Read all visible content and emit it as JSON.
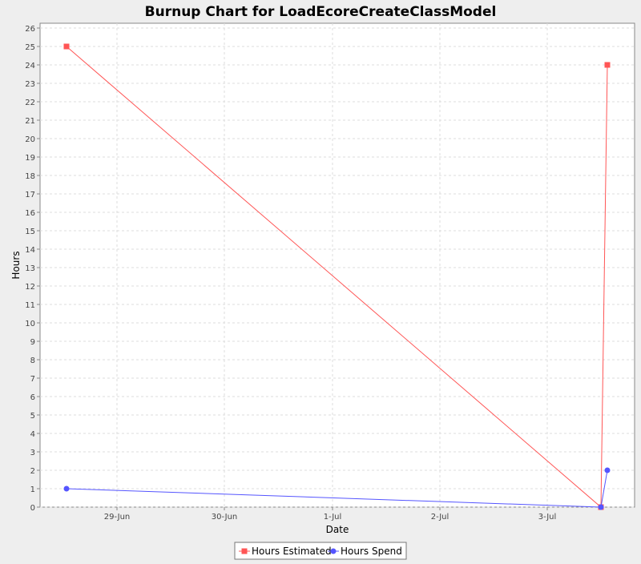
{
  "chart_data": {
    "type": "line",
    "title": "Burnup Chart for LoadEcoreCreateClassModel",
    "xlabel": "Date",
    "ylabel": "Hours",
    "ylim": [
      0,
      26
    ],
    "yticks": [
      0,
      1,
      2,
      3,
      4,
      5,
      6,
      7,
      8,
      9,
      10,
      11,
      12,
      13,
      14,
      15,
      16,
      17,
      18,
      19,
      20,
      21,
      22,
      23,
      24,
      25,
      26
    ],
    "xticks": [
      "29-Jun",
      "30-Jun",
      "1-Jul",
      "2-Jul",
      "3-Jul"
    ],
    "grid": true,
    "legend_position": "bottom",
    "series": [
      {
        "name": "Hours Estimated",
        "color": "#ff5555",
        "marker": "square",
        "points": [
          {
            "date": "28-Jun",
            "y": 25
          },
          {
            "date": "3-Jul",
            "y": 0
          },
          {
            "date": "3-Jul",
            "y": 24
          }
        ]
      },
      {
        "name": "Hours Spend",
        "color": "#5555ff",
        "marker": "circle",
        "points": [
          {
            "date": "28-Jun",
            "y": 1
          },
          {
            "date": "3-Jul",
            "y": 0
          },
          {
            "date": "3-Jul",
            "y": 2
          }
        ]
      }
    ]
  }
}
